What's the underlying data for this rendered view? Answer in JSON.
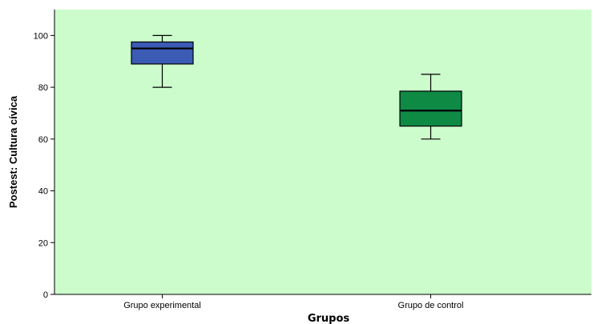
{
  "chart_data": {
    "type": "boxplot",
    "xlabel": "Grupos",
    "ylabel": "Postest: Cultura cívica",
    "ylim": [
      0,
      110
    ],
    "yticks": [
      0,
      20,
      40,
      60,
      80,
      100
    ],
    "ytick_labels": [
      "0",
      "20",
      "40",
      "60",
      "80",
      "100"
    ],
    "grid": false,
    "plot_background": "#ccfccc",
    "categories": [
      "Grupo experimental",
      "Grupo de control"
    ],
    "boxes": [
      {
        "category": "Grupo experimental",
        "min": 80,
        "q1": 89,
        "median": 95,
        "q3": 97.5,
        "max": 100,
        "color": "#3b5bb5"
      },
      {
        "category": "Grupo de control",
        "min": 60,
        "q1": 65,
        "median": 71,
        "q3": 78.5,
        "max": 85,
        "color": "#0f8a45"
      }
    ]
  }
}
